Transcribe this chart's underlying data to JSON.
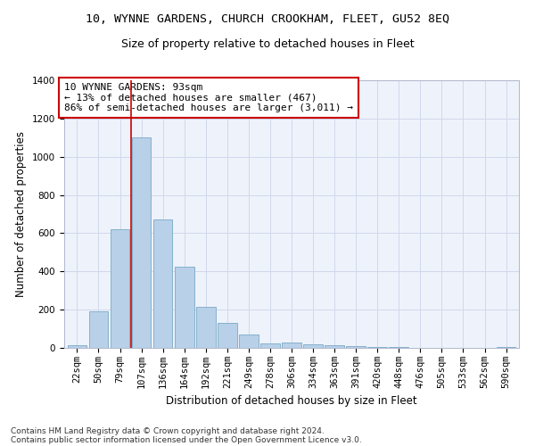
{
  "title": "10, WYNNE GARDENS, CHURCH CROOKHAM, FLEET, GU52 8EQ",
  "subtitle": "Size of property relative to detached houses in Fleet",
  "xlabel": "Distribution of detached houses by size in Fleet",
  "ylabel": "Number of detached properties",
  "bar_color": "#b8d0e8",
  "bar_edge_color": "#7aaac8",
  "background_color": "#eef2fa",
  "grid_color": "#d0d8ec",
  "categories": [
    "22sqm",
    "50sqm",
    "79sqm",
    "107sqm",
    "136sqm",
    "164sqm",
    "192sqm",
    "221sqm",
    "249sqm",
    "278sqm",
    "306sqm",
    "334sqm",
    "363sqm",
    "391sqm",
    "420sqm",
    "448sqm",
    "476sqm",
    "505sqm",
    "533sqm",
    "562sqm",
    "590sqm"
  ],
  "values": [
    15,
    190,
    620,
    1100,
    670,
    425,
    215,
    130,
    70,
    25,
    30,
    20,
    12,
    8,
    5,
    3,
    2,
    1,
    1,
    1,
    5
  ],
  "ylim": [
    0,
    1400
  ],
  "yticks": [
    0,
    200,
    400,
    600,
    800,
    1000,
    1200,
    1400
  ],
  "vline_pos": 2.5,
  "annotation_text": "10 WYNNE GARDENS: 93sqm\n← 13% of detached houses are smaller (467)\n86% of semi-detached houses are larger (3,011) →",
  "annotation_box_color": "#ffffff",
  "annotation_box_edge_color": "#cc0000",
  "footer_line1": "Contains HM Land Registry data © Crown copyright and database right 2024.",
  "footer_line2": "Contains public sector information licensed under the Open Government Licence v3.0.",
  "vline_color": "#cc0000",
  "title_fontsize": 9.5,
  "subtitle_fontsize": 9,
  "axis_label_fontsize": 8.5,
  "tick_fontsize": 7.5,
  "annotation_fontsize": 8,
  "footer_fontsize": 6.5
}
